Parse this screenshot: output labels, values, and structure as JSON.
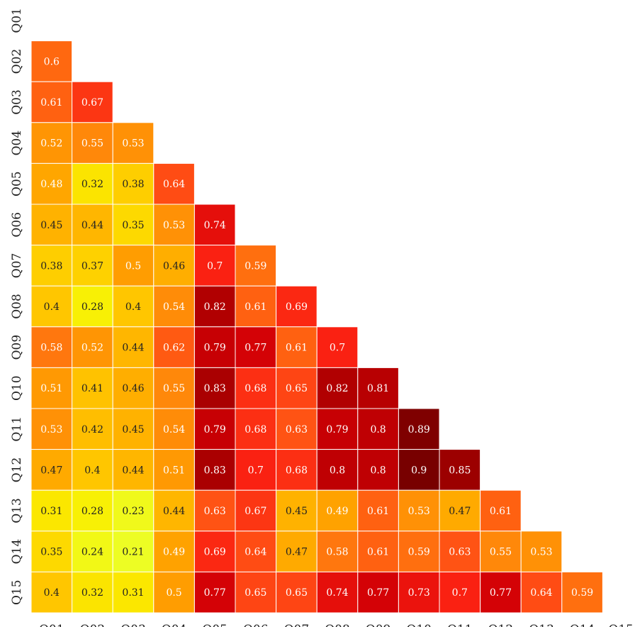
{
  "chart_data": {
    "type": "heatmap",
    "title": "",
    "xlabel": "",
    "ylabel": "",
    "layout": "lower-triangle",
    "grid": false,
    "legend": "none",
    "colormap": "hot_r (yellow=low, dark red=high)",
    "value_range": [
      0.2,
      0.9
    ],
    "labels": [
      "Q01",
      "Q02",
      "Q03",
      "Q04",
      "Q05",
      "Q06",
      "Q07",
      "Q08",
      "Q09",
      "Q10",
      "Q11",
      "Q12",
      "Q13",
      "Q14",
      "Q15"
    ],
    "rows": [
      [],
      [
        0.6
      ],
      [
        0.61,
        0.67
      ],
      [
        0.52,
        0.55,
        0.53
      ],
      [
        0.48,
        0.32,
        0.38,
        0.64
      ],
      [
        0.45,
        0.44,
        0.35,
        0.53,
        0.74
      ],
      [
        0.38,
        0.37,
        0.5,
        0.46,
        0.7,
        0.59
      ],
      [
        0.4,
        0.28,
        0.4,
        0.54,
        0.82,
        0.61,
        0.69
      ],
      [
        0.58,
        0.52,
        0.44,
        0.62,
        0.79,
        0.77,
        0.61,
        0.7
      ],
      [
        0.51,
        0.41,
        0.46,
        0.55,
        0.83,
        0.68,
        0.65,
        0.82,
        0.81
      ],
      [
        0.53,
        0.42,
        0.45,
        0.54,
        0.79,
        0.68,
        0.63,
        0.79,
        0.8,
        0.89
      ],
      [
        0.47,
        0.4,
        0.44,
        0.51,
        0.83,
        0.7,
        0.68,
        0.8,
        0.8,
        0.9,
        0.85
      ],
      [
        0.31,
        0.28,
        0.23,
        0.44,
        0.63,
        0.67,
        0.45,
        0.49,
        0.61,
        0.53,
        0.47,
        0.61
      ],
      [
        0.35,
        0.24,
        0.21,
        0.49,
        0.69,
        0.64,
        0.47,
        0.58,
        0.61,
        0.59,
        0.63,
        0.55,
        0.53
      ],
      [
        0.4,
        0.32,
        0.31,
        0.5,
        0.77,
        0.65,
        0.65,
        0.74,
        0.77,
        0.73,
        0.7,
        0.77,
        0.64,
        0.59
      ]
    ]
  }
}
